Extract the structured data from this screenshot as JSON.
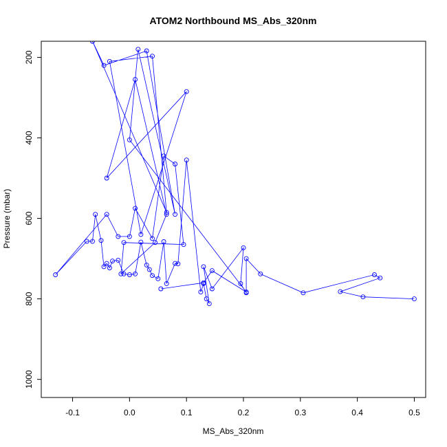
{
  "chart_data": {
    "type": "line",
    "title": "ATOM2 Northbound MS_Abs_320nm",
    "xlabel": "MS_Abs_320nm",
    "ylabel": "Pressure (mbar)",
    "xlim": [
      -0.155,
      0.52
    ],
    "ylim": [
      1045,
      160
    ],
    "y_reversed": true,
    "xticks": [
      -0.1,
      0.0,
      0.1,
      0.2,
      0.3,
      0.4,
      0.5
    ],
    "xtick_labels": [
      "-0.1",
      "0.0",
      "0.1",
      "0.2",
      "0.3",
      "0.4",
      "0.5"
    ],
    "yticks": [
      200,
      400,
      600,
      800,
      1000
    ],
    "ytick_labels": [
      "200",
      "400",
      "600",
      "800",
      "1000"
    ],
    "grid": false,
    "series_color": "#0000ff",
    "markers": "open-circle",
    "series": [
      {
        "x": [
          0.5,
          0.41,
          0.37,
          0.44,
          0.43,
          0.305,
          0.23,
          0.205,
          0.205,
          0.195,
          0.2,
          0.145,
          0.13,
          0.14,
          0.135,
          0.13,
          0.125,
          0.1,
          0.085,
          0.08,
          0.065,
          0.06,
          0.05,
          0.04,
          0.035,
          0.03,
          0.02,
          0.01,
          0.0,
          -0.01,
          -0.02,
          -0.03,
          -0.035,
          -0.04,
          -0.045,
          -0.05,
          -0.06,
          -0.065,
          -0.075,
          -0.13,
          -0.04,
          -0.02,
          0.0,
          0.01,
          0.04,
          0.06,
          0.08,
          0.095,
          -0.01,
          -0.015,
          0.045,
          0.065,
          0.01,
          -0.04,
          0.1,
          0.02,
          -0.035,
          0.04,
          0.065,
          -0.065,
          -0.045,
          0.03,
          0.08,
          0.015,
          0.0,
          0.205,
          0.145,
          0.13,
          0.055
        ],
        "y": [
          800,
          795,
          782,
          748,
          740,
          785,
          738,
          700,
          785,
          762,
          673,
          775,
          720,
          812,
          800,
          762,
          783,
          455,
          713,
          712,
          762,
          658,
          750,
          742,
          727,
          716,
          659,
          738,
          740,
          738,
          704,
          706,
          723,
          712,
          720,
          655,
          590,
          657,
          657,
          740,
          590,
          645,
          645,
          575,
          650,
          445,
          465,
          665,
          660,
          738,
          660,
          590,
          255,
          500,
          285,
          640,
          210,
          197,
          585,
          160,
          220,
          184,
          590,
          180,
          405,
          783,
          730,
          760,
          775
        ]
      }
    ]
  }
}
